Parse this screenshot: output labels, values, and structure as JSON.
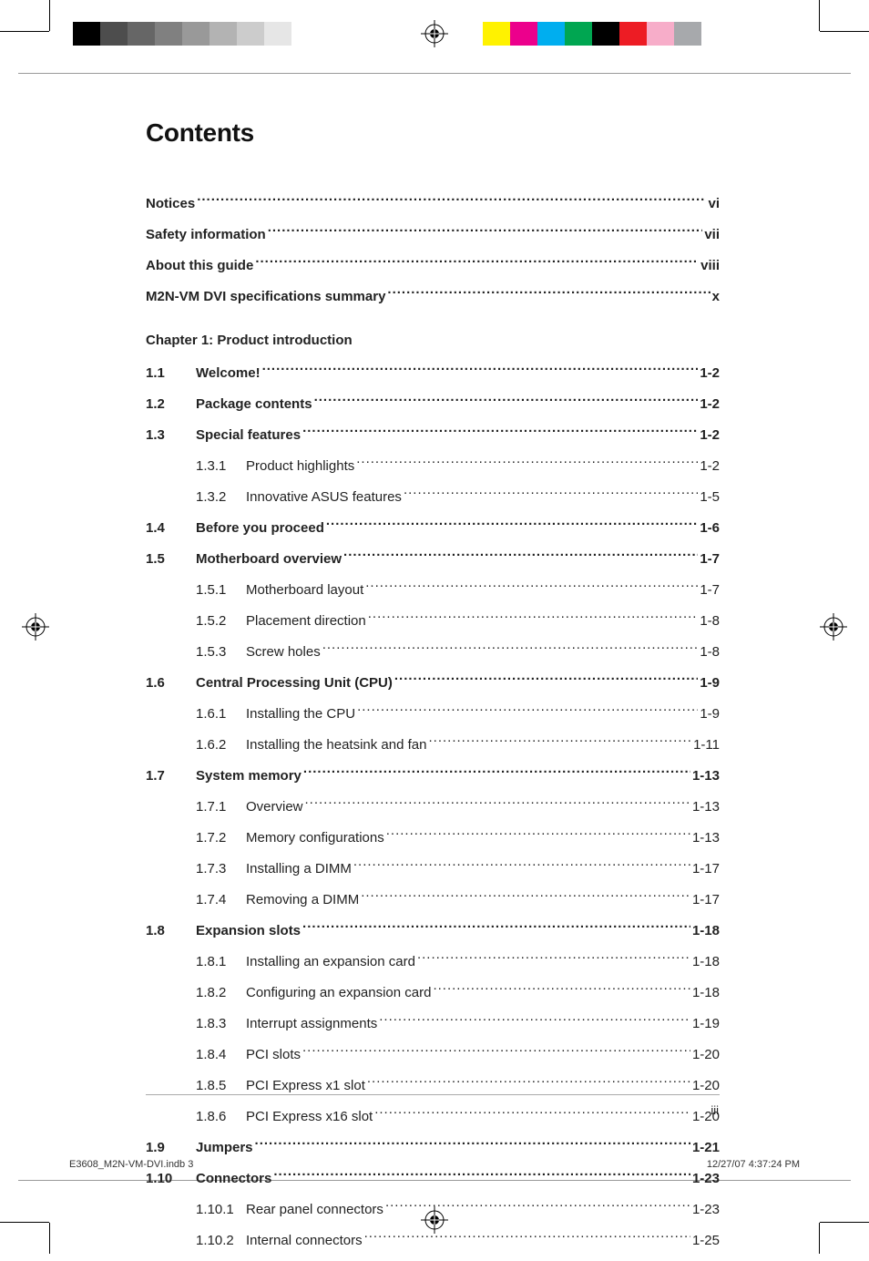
{
  "title": "Contents",
  "colorbars": {
    "left": [
      "#000000",
      "#4d4d4d",
      "#666666",
      "#808080",
      "#999999",
      "#b3b3b3",
      "#cccccc",
      "#e6e6e6",
      "#ffffff"
    ],
    "right": [
      "#fff200",
      "#ec008c",
      "#00aeef",
      "#00a651",
      "#000000",
      "#ed1c24",
      "#f7adc9",
      "#a7a9ac"
    ]
  },
  "front_matter": [
    {
      "label": "Notices",
      "page": "vi"
    },
    {
      "label": "Safety information",
      "page": "vii"
    },
    {
      "label": "About this guide",
      "page": "viii"
    },
    {
      "label": "M2N-VM DVI specifications summary",
      "page": "x"
    }
  ],
  "chapter_title": "Chapter 1: Product introduction",
  "sections": [
    {
      "num": "1.1",
      "label": "Welcome!",
      "page": "1-2",
      "subs": []
    },
    {
      "num": "1.2",
      "label": "Package contents",
      "page": "1-2",
      "subs": []
    },
    {
      "num": "1.3",
      "label": "Special features",
      "page": "1-2",
      "subs": [
        {
          "num": "1.3.1",
          "label": "Product highlights",
          "page": "1-2"
        },
        {
          "num": "1.3.2",
          "label": "Innovative ASUS features",
          "page": "1-5"
        }
      ]
    },
    {
      "num": "1.4",
      "label": "Before you proceed",
      "page": "1-6",
      "subs": []
    },
    {
      "num": "1.5",
      "label": "Motherboard overview",
      "page": "1-7",
      "subs": [
        {
          "num": "1.5.1",
          "label": "Motherboard layout",
          "page": "1-7"
        },
        {
          "num": "1.5.2",
          "label": "Placement direction",
          "page": "1-8"
        },
        {
          "num": "1.5.3",
          "label": "Screw holes",
          "page": "1-8"
        }
      ]
    },
    {
      "num": "1.6",
      "label": "Central Processing Unit (CPU)",
      "page": "1-9",
      "subs": [
        {
          "num": "1.6.1",
          "label": "Installing the CPU",
          "page": "1-9"
        },
        {
          "num": "1.6.2",
          "label": "Installing the heatsink and fan",
          "page": "1-11"
        }
      ]
    },
    {
      "num": "1.7",
      "label": "System memory",
      "page": "1-13",
      "subs": [
        {
          "num": "1.7.1",
          "label": "Overview",
          "page": "1-13"
        },
        {
          "num": "1.7.2",
          "label": "Memory configurations",
          "page": "1-13"
        },
        {
          "num": "1.7.3",
          "label": "Installing a DIMM",
          "page": "1-17"
        },
        {
          "num": "1.7.4",
          "label": "Removing a DIMM",
          "page": "1-17"
        }
      ]
    },
    {
      "num": "1.8",
      "label": "Expansion slots",
      "page": "1-18",
      "subs": [
        {
          "num": "1.8.1",
          "label": "Installing an expansion card",
          "page": "1-18"
        },
        {
          "num": "1.8.2",
          "label": "Configuring an expansion card",
          "page": "1-18"
        },
        {
          "num": "1.8.3",
          "label": "Interrupt assignments",
          "page": "1-19"
        },
        {
          "num": "1.8.4",
          "label": "PCI slots",
          "page": "1-20"
        },
        {
          "num": "1.8.5",
          "label": "PCI Express x1 slot",
          "page": "1-20"
        },
        {
          "num": "1.8.6",
          "label": "PCI Express x16 slot",
          "page": "1-20"
        }
      ]
    },
    {
      "num": "1.9",
      "label": "Jumpers",
      "page": "1-21",
      "subs": []
    },
    {
      "num": "1.10",
      "label": "Connectors",
      "page": "1-23",
      "subs": [
        {
          "num": "1.10.1",
          "label": "Rear panel connectors",
          "page": "1-23"
        },
        {
          "num": "1.10.2",
          "label": "Internal connectors",
          "page": "1-25"
        }
      ]
    }
  ],
  "page_number": "iii",
  "footer_left": "E3608_M2N-VM-DVI.indb   3",
  "footer_right": "12/27/07   4:37:24 PM"
}
